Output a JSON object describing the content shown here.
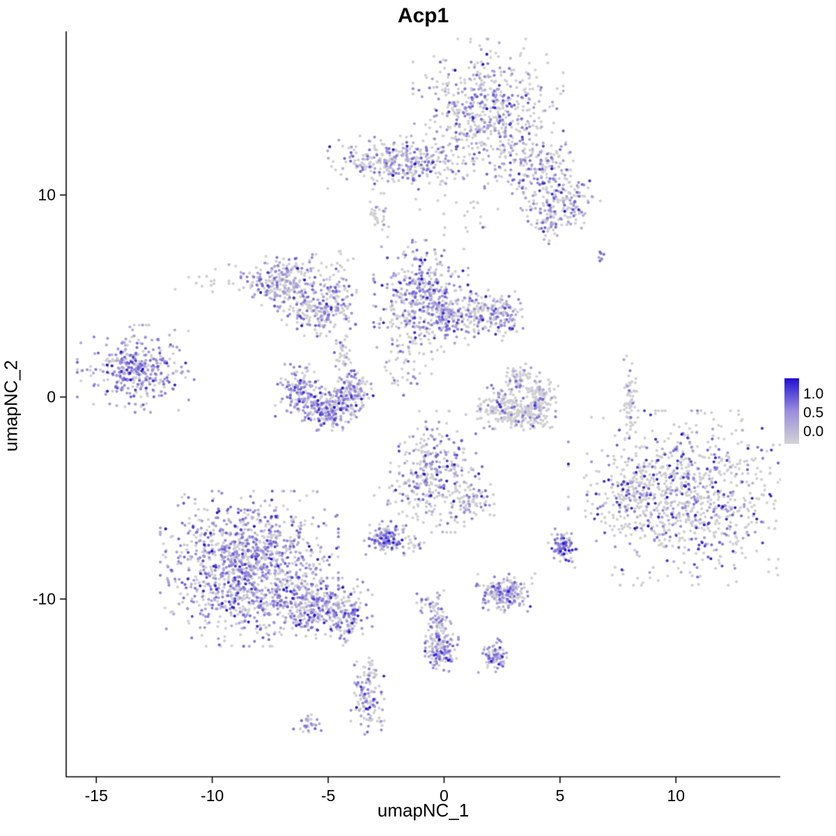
{
  "chart_data": {
    "type": "scatter",
    "title": "Acp1",
    "xlabel": "umapNC_1",
    "ylabel": "umapNC_2",
    "xlim": [
      -16.3,
      14.5
    ],
    "ylim": [
      -18.8,
      18.1
    ],
    "x_ticks": [
      -15,
      -10,
      -5,
      0,
      5,
      10
    ],
    "y_ticks": [
      -10,
      0,
      10
    ],
    "grid": false,
    "point_radius_px": 2.1,
    "legend": {
      "position": "right",
      "labels": [
        "1.0",
        "0.5",
        "0.0"
      ],
      "stops": [
        {
          "v": 0.0,
          "color": "#d3d3d3"
        },
        {
          "v": 0.5,
          "color": "#9a8cdf"
        },
        {
          "v": 1.0,
          "color": "#2110d4"
        }
      ]
    },
    "clusters": [
      {
        "x": 1.9,
        "y": 14.0,
        "sx": 1.35,
        "sy": 1.55,
        "n": 600,
        "w": [
          0.6,
          0.35,
          0.05
        ]
      },
      {
        "x": 4.0,
        "y": 11.4,
        "sx": 0.75,
        "sy": 0.9,
        "n": 150,
        "w": [
          0.6,
          0.35,
          0.05
        ]
      },
      {
        "x": 5.3,
        "y": 9.8,
        "sx": 0.6,
        "sy": 0.6,
        "n": 130,
        "w": [
          0.55,
          0.4,
          0.05
        ]
      },
      {
        "x": 4.5,
        "y": 8.7,
        "sx": 0.4,
        "sy": 0.5,
        "n": 60,
        "w": [
          0.5,
          0.45,
          0.05
        ]
      },
      {
        "x": -1.9,
        "y": 11.6,
        "sx": 1.3,
        "sy": 0.55,
        "n": 330,
        "w": [
          0.6,
          0.37,
          0.03
        ]
      },
      {
        "x": -2.8,
        "y": 9.0,
        "sx": 0.25,
        "sy": 0.45,
        "n": 30,
        "w": [
          0.8,
          0.2,
          0.0
        ]
      },
      {
        "x": 0.7,
        "y": 9.3,
        "sx": 0.8,
        "sy": 0.8,
        "n": 25,
        "w": [
          0.8,
          0.2,
          0.0
        ]
      },
      {
        "x": -7.0,
        "y": 5.7,
        "sx": 0.95,
        "sy": 0.6,
        "n": 280,
        "w": [
          0.55,
          0.42,
          0.03
        ]
      },
      {
        "x": -5.5,
        "y": 4.2,
        "sx": 0.7,
        "sy": 0.5,
        "n": 160,
        "w": [
          0.55,
          0.42,
          0.03
        ]
      },
      {
        "x": -4.5,
        "y": 5.3,
        "sx": 0.3,
        "sy": 0.8,
        "n": 60,
        "w": [
          0.55,
          0.4,
          0.05
        ]
      },
      {
        "x": -1.0,
        "y": 5.0,
        "sx": 0.85,
        "sy": 1.15,
        "n": 400,
        "w": [
          0.45,
          0.48,
          0.07
        ]
      },
      {
        "x": 0.9,
        "y": 4.1,
        "sx": 1.0,
        "sy": 0.6,
        "n": 260,
        "w": [
          0.6,
          0.36,
          0.04
        ]
      },
      {
        "x": 2.6,
        "y": 4.1,
        "sx": 0.35,
        "sy": 0.5,
        "n": 80,
        "w": [
          0.5,
          0.43,
          0.07
        ]
      },
      {
        "x": -1.7,
        "y": 2.2,
        "sx": 0.5,
        "sy": 1.0,
        "n": 60,
        "w": [
          0.7,
          0.3,
          0.0
        ]
      },
      {
        "x": -13.3,
        "y": 1.4,
        "sx": 1.05,
        "sy": 0.9,
        "n": 380,
        "w": [
          0.4,
          0.54,
          0.06
        ]
      },
      {
        "x": -6.2,
        "y": 0.3,
        "sx": 0.45,
        "sy": 0.55,
        "n": 140,
        "w": [
          0.5,
          0.45,
          0.05
        ]
      },
      {
        "x": -5.1,
        "y": -0.7,
        "sx": 0.55,
        "sy": 0.4,
        "n": 220,
        "w": [
          0.45,
          0.48,
          0.07
        ]
      },
      {
        "x": -3.9,
        "y": 0.1,
        "sx": 0.35,
        "sy": 0.5,
        "n": 140,
        "w": [
          0.5,
          0.45,
          0.05
        ]
      },
      {
        "x": -4.4,
        "y": 2.2,
        "sx": 0.2,
        "sy": 0.6,
        "n": 40,
        "w": [
          0.75,
          0.25,
          0.0
        ]
      },
      {
        "x": 2.4,
        "y": -0.5,
        "sx": 0.5,
        "sy": 0.45,
        "n": 130,
        "w": [
          0.85,
          0.13,
          0.02
        ]
      },
      {
        "x": 3.5,
        "y": -0.9,
        "sx": 0.5,
        "sy": 0.35,
        "n": 150,
        "w": [
          0.85,
          0.13,
          0.02
        ]
      },
      {
        "x": 4.2,
        "y": 0.0,
        "sx": 0.3,
        "sy": 0.5,
        "n": 100,
        "w": [
          0.85,
          0.15,
          0.0
        ]
      },
      {
        "x": 3.2,
        "y": 0.8,
        "sx": 0.3,
        "sy": 0.35,
        "n": 60,
        "w": [
          0.7,
          0.3,
          0.0
        ]
      },
      {
        "x": 8.0,
        "y": 0.0,
        "sx": 0.15,
        "sy": 0.85,
        "n": 60,
        "w": [
          0.9,
          0.1,
          0.0
        ]
      },
      {
        "x": -0.4,
        "y": -3.7,
        "sx": 0.85,
        "sy": 1.25,
        "n": 320,
        "w": [
          0.6,
          0.35,
          0.05
        ]
      },
      {
        "x": 1.2,
        "y": -5.2,
        "sx": 0.4,
        "sy": 0.5,
        "n": 70,
        "w": [
          0.7,
          0.3,
          0.0
        ]
      },
      {
        "x": 10.4,
        "y": -5.0,
        "sx": 2.1,
        "sy": 1.8,
        "n": 950,
        "w": [
          0.72,
          0.2,
          0.08
        ]
      },
      {
        "x": 8.1,
        "y": -4.8,
        "sx": 0.5,
        "sy": 0.7,
        "n": 80,
        "w": [
          0.75,
          0.2,
          0.05
        ]
      },
      {
        "x": -8.4,
        "y": -8.5,
        "sx": 1.6,
        "sy": 1.6,
        "n": 1250,
        "w": [
          0.42,
          0.52,
          0.06
        ]
      },
      {
        "x": -5.5,
        "y": -10.4,
        "sx": 1.0,
        "sy": 0.6,
        "n": 320,
        "w": [
          0.5,
          0.45,
          0.05
        ]
      },
      {
        "x": -4.2,
        "y": -11.1,
        "sx": 0.35,
        "sy": 0.5,
        "n": 90,
        "w": [
          0.5,
          0.45,
          0.05
        ]
      },
      {
        "x": -2.5,
        "y": -7.0,
        "sx": 0.4,
        "sy": 0.35,
        "n": 130,
        "w": [
          0.35,
          0.55,
          0.1
        ]
      },
      {
        "x": -1.2,
        "y": -7.3,
        "sx": 0.3,
        "sy": 0.3,
        "n": 20,
        "w": [
          0.8,
          0.2,
          0.0
        ]
      },
      {
        "x": -1.4,
        "y": -5.2,
        "sx": 0.7,
        "sy": 0.6,
        "n": 40,
        "w": [
          0.75,
          0.25,
          0.0
        ]
      },
      {
        "x": 5.1,
        "y": -7.4,
        "sx": 0.28,
        "sy": 0.38,
        "n": 90,
        "w": [
          0.3,
          0.6,
          0.1
        ]
      },
      {
        "x": 2.6,
        "y": -9.7,
        "sx": 0.55,
        "sy": 0.4,
        "n": 190,
        "w": [
          0.45,
          0.5,
          0.05
        ]
      },
      {
        "x": -0.3,
        "y": -11.2,
        "sx": 0.25,
        "sy": 0.55,
        "n": 70,
        "w": [
          0.55,
          0.45,
          0.0
        ]
      },
      {
        "x": -0.1,
        "y": -12.5,
        "sx": 0.3,
        "sy": 0.45,
        "n": 130,
        "w": [
          0.45,
          0.5,
          0.05
        ]
      },
      {
        "x": -0.6,
        "y": -10.2,
        "sx": 0.3,
        "sy": 0.3,
        "n": 25,
        "w": [
          0.6,
          0.4,
          0.0
        ]
      },
      {
        "x": 2.2,
        "y": -12.8,
        "sx": 0.3,
        "sy": 0.35,
        "n": 80,
        "w": [
          0.45,
          0.5,
          0.05
        ]
      },
      {
        "x": -3.3,
        "y": -14.9,
        "sx": 0.3,
        "sy": 0.75,
        "n": 110,
        "w": [
          0.55,
          0.4,
          0.05
        ]
      },
      {
        "x": -3.2,
        "y": -13.6,
        "sx": 0.15,
        "sy": 0.4,
        "n": 25,
        "w": [
          0.85,
          0.15,
          0.0
        ]
      },
      {
        "x": -5.9,
        "y": -16.2,
        "sx": 0.25,
        "sy": 0.3,
        "n": 30,
        "w": [
          0.6,
          0.4,
          0.0
        ]
      },
      {
        "x": 6.8,
        "y": 7.0,
        "sx": 0.12,
        "sy": 0.12,
        "n": 8,
        "w": [
          0.2,
          0.7,
          0.1
        ]
      },
      {
        "x": -10.4,
        "y": 5.8,
        "sx": 0.5,
        "sy": 0.3,
        "n": 12,
        "w": [
          0.85,
          0.15,
          0.0
        ]
      }
    ]
  }
}
